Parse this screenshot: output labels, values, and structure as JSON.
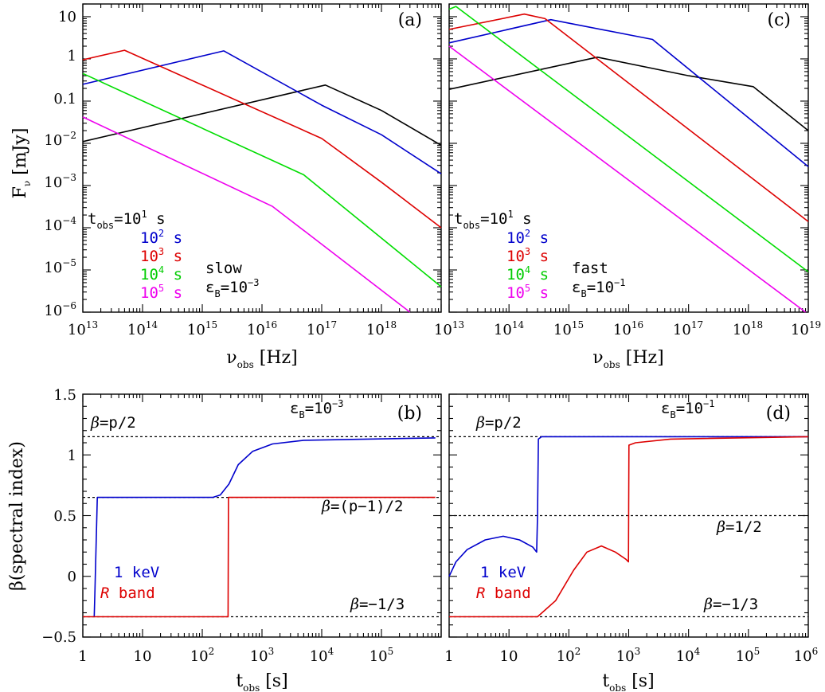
{
  "figure": {
    "colors": {
      "t1e1": "#000000",
      "t1e2": "#0000cc",
      "t1e3": "#dd0000",
      "t1e4": "#00dd00",
      "t1e5": "#ee00ee",
      "ref": "#000000"
    }
  },
  "chart_data": [
    {
      "panel": "(a)",
      "type": "line",
      "xscale": "log",
      "yscale": "log",
      "xlabel": "ν_obs [Hz]",
      "ylabel": "F_ν [mJy]",
      "xlim": [
        10000000000000.0,
        1e+19
      ],
      "ylim": [
        1e-06,
        20
      ],
      "xtick_labels": [
        "10^13",
        "10^14",
        "10^15",
        "10^16",
        "10^17",
        "10^18"
      ],
      "ytick_labels": [
        "10",
        "1",
        "0.1",
        "10^-2",
        "10^-3",
        "10^-4",
        "10^-5",
        "10^-6"
      ],
      "legend_title": "t_obs=10^1 s",
      "legend": [
        "10^1 s",
        "10^2 s",
        "10^3 s",
        "10^4 s",
        "10^5 s"
      ],
      "annotations": [
        "slow",
        "ε_B=10^-3"
      ],
      "series": [
        {
          "name": "10^1 s",
          "color": "#000000",
          "x": [
            10000000000000.0,
            1.15e+17,
            1e+18,
            1e+19
          ],
          "y": [
            0.011,
            0.24,
            0.06,
            0.009
          ]
        },
        {
          "name": "10^2 s",
          "color": "#0000cc",
          "x": [
            10000000000000.0,
            2300000000000000.0,
            1e+17,
            1e+18,
            1e+19
          ],
          "y": [
            0.25,
            1.55,
            0.08,
            0.016,
            0.0019
          ]
        },
        {
          "name": "10^3 s",
          "color": "#dd0000",
          "x": [
            10000000000000.0,
            50000000000000.0,
            1e+17,
            1e+18,
            1e+19
          ],
          "y": [
            0.95,
            1.6,
            0.013,
            0.0012,
            0.0001
          ]
        },
        {
          "name": "10^4 s",
          "color": "#00dd00",
          "x": [
            10000000000000.0,
            5e+16,
            1e+19
          ],
          "y": [
            0.45,
            0.0018,
            4e-06
          ]
        },
        {
          "name": "10^5 s",
          "color": "#ee00ee",
          "x": [
            10000000000000.0,
            1.5e+16,
            3e+18
          ],
          "y": [
            0.042,
            0.00032,
            1e-06
          ]
        }
      ]
    },
    {
      "panel": "(c)",
      "type": "line",
      "xscale": "log",
      "yscale": "log",
      "xlabel": "ν_obs [Hz]",
      "ylabel": "",
      "xlim": [
        10000000000000.0,
        1e+19
      ],
      "ylim": [
        1e-06,
        20
      ],
      "xtick_labels": [
        "10^13",
        "10^14",
        "10^15",
        "10^16",
        "10^17",
        "10^18",
        "10^19"
      ],
      "legend_title": "t_obs=10^1 s",
      "legend": [
        "10^1 s",
        "10^2 s",
        "10^3 s",
        "10^4 s",
        "10^5 s"
      ],
      "annotations": [
        "fast",
        "ε_B=10^-1"
      ],
      "series": [
        {
          "name": "10^1 s",
          "color": "#000000",
          "x": [
            10000000000000.0,
            3000000000000000.0,
            1e+17,
            1.2e+18,
            1e+19
          ],
          "y": [
            0.19,
            1.1,
            0.4,
            0.22,
            0.02
          ]
        },
        {
          "name": "10^2 s",
          "color": "#0000cc",
          "x": [
            10000000000000.0,
            500000000000000.0,
            2.5e+16,
            1e+19
          ],
          "y": [
            2.4,
            8.5,
            2.9,
            0.0028
          ]
        },
        {
          "name": "10^3 s",
          "color": "#dd0000",
          "x": [
            10000000000000.0,
            180000000000000.0,
            400000000000000.0,
            1e+19
          ],
          "y": [
            5,
            11.5,
            9,
            0.00014
          ]
        },
        {
          "name": "10^4 s",
          "color": "#00dd00",
          "x": [
            10000000000000.0,
            13000000000000.0,
            1e+19
          ],
          "y": [
            15,
            17.5,
            9e-06
          ]
        },
        {
          "name": "10^5 s",
          "color": "#ee00ee",
          "x": [
            10000000000000.0,
            9e+18
          ],
          "y": [
            2,
            1e-06
          ]
        }
      ]
    },
    {
      "panel": "(b)",
      "type": "line",
      "xscale": "log",
      "yscale": "linear",
      "xlabel": "t_obs [s]",
      "ylabel": "β(spectral index)",
      "xlim": [
        1,
        800000.0
      ],
      "ylim": [
        -0.5,
        1.5
      ],
      "xtick_labels": [
        "1",
        "10",
        "10^2",
        "10^3",
        "10^4",
        "10^5"
      ],
      "ytick_labels": [
        "1.5",
        "1",
        "0.5",
        "0",
        "−0.5"
      ],
      "reference_lines": [
        {
          "label": "β=p/2",
          "y": 1.15
        },
        {
          "label": "β=(p−1)/2",
          "y": 0.65
        },
        {
          "label": "β=−1/3",
          "y": -0.333
        }
      ],
      "legend": [
        "1 keV",
        "R band"
      ],
      "annotations": [
        "ε_B=10^-3"
      ],
      "series": [
        {
          "name": "1 keV",
          "color": "#0000cc",
          "x": [
            1.55,
            1.6,
            1.75,
            150,
            200,
            280,
            400,
            700,
            1500,
            5000,
            800000.0
          ],
          "y": [
            -0.333,
            -0.1,
            0.65,
            0.65,
            0.67,
            0.76,
            0.92,
            1.03,
            1.09,
            1.12,
            1.14
          ]
        },
        {
          "name": "R band",
          "color": "#dd0000",
          "x": [
            1,
            270,
            275,
            800000.0
          ],
          "y": [
            -0.333,
            -0.333,
            0.65,
            0.65
          ]
        }
      ]
    },
    {
      "panel": "(d)",
      "type": "line",
      "xscale": "log",
      "yscale": "linear",
      "xlabel": "t_obs [s]",
      "ylabel": "",
      "xlim": [
        1,
        1000000.0
      ],
      "ylim": [
        -0.5,
        1.5
      ],
      "xtick_labels": [
        "1",
        "10",
        "10^2",
        "10^3",
        "10^4",
        "10^5",
        "10^6"
      ],
      "reference_lines": [
        {
          "label": "β=p/2",
          "y": 1.15
        },
        {
          "label": "β=1/2",
          "y": 0.5
        },
        {
          "label": "β=−1/3",
          "y": -0.333
        }
      ],
      "legend": [
        "1 keV",
        "R band"
      ],
      "annotations": [
        "ε_B=10^-1"
      ],
      "series": [
        {
          "name": "1 keV",
          "color": "#0000cc",
          "x": [
            1,
            1.3,
            2,
            4,
            8,
            15,
            25,
            29,
            30,
            31,
            35,
            1000000.0
          ],
          "y": [
            0.0,
            0.12,
            0.22,
            0.3,
            0.33,
            0.3,
            0.24,
            0.2,
            0.5,
            1.13,
            1.15,
            1.15
          ]
        },
        {
          "name": "R band",
          "color": "#dd0000",
          "x": [
            1,
            30,
            60,
            120,
            200,
            350,
            600,
            900,
            990,
            1010,
            1300,
            5000,
            1000000.0
          ],
          "y": [
            -0.333,
            -0.333,
            -0.2,
            0.05,
            0.2,
            0.25,
            0.2,
            0.14,
            0.12,
            1.08,
            1.1,
            1.13,
            1.15
          ]
        }
      ]
    }
  ]
}
